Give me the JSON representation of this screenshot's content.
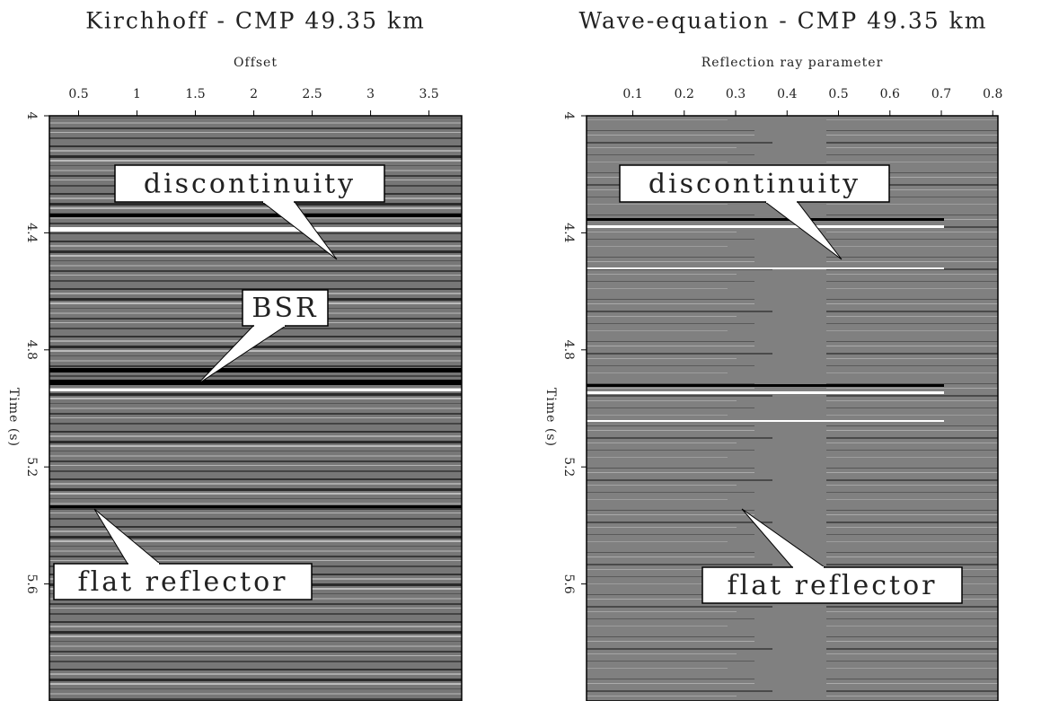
{
  "chart_data": [
    {
      "type": "seismic",
      "title": "Kirchhoff - CMP 49.35 km",
      "xlabel": "Offset",
      "ylabel": "Time (s)",
      "xlim": [
        0.25,
        3.78
      ],
      "xticks": [
        0.5,
        1,
        1.5,
        2,
        2.5,
        3,
        3.5
      ],
      "ylim": [
        4,
        6
      ],
      "yticks": [
        4,
        4.4,
        4.8,
        5.2,
        5.6
      ],
      "annotations": [
        "discontinuity",
        "BSR",
        "flat reflector"
      ]
    },
    {
      "type": "seismic",
      "title": "Wave-equation - CMP 49.35 km",
      "xlabel": "Reflection ray parameter",
      "ylabel": "Time (s)",
      "xlim": [
        0.01,
        0.81
      ],
      "xticks": [
        0.1,
        0.2,
        0.3,
        0.4,
        0.5,
        0.6,
        0.7,
        0.8
      ],
      "ylim": [
        4,
        6
      ],
      "yticks": [
        4,
        4.4,
        4.8,
        5.2,
        5.6
      ],
      "annotations": [
        "discontinuity",
        "flat reflector"
      ]
    }
  ]
}
